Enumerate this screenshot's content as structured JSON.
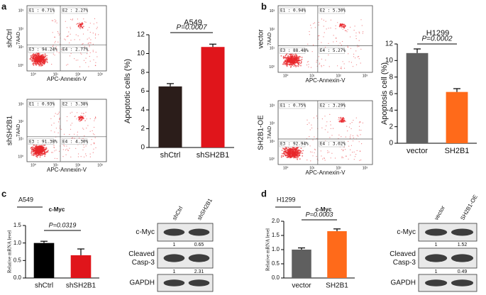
{
  "panel_labels": [
    "a",
    "b",
    "c",
    "d"
  ],
  "flow_ticks": [
    "10⁰",
    "10¹",
    "10²",
    "10³"
  ],
  "flow_plots": [
    {
      "label": "shCtrl",
      "ylabel": "7AAD",
      "xlabel": "APC-Annexin-V",
      "quadrants": [
        "E1 : 0.71%",
        "E2 : 2.27%",
        "E3 : 94.24%",
        "E4 : 2.77%"
      ]
    },
    {
      "label": "shSH2B1",
      "ylabel": "7AAD",
      "xlabel": "APC-Annexin-V",
      "quadrants": [
        "E1 : 0.93%",
        "E2 : 3.38%",
        "E3 : 91.38%",
        "E4 : 4.30%"
      ]
    },
    {
      "label": "vector",
      "ylabel": "7AAD",
      "xlabel": "APC-Annexin-V",
      "quadrants": [
        "E1 : 0.94%",
        "E2 : 5.30%",
        "E3 : 88.48%",
        "E4 : 5.27%"
      ]
    },
    {
      "label": "SH2B1-OE",
      "ylabel": "7AAD",
      "xlabel": "APC-Annexin-V",
      "quadrants": [
        "E1 : 0.75%",
        "E2 : 3.29%",
        "E3 : 92.94%",
        "E4 : 3.02%"
      ]
    }
  ],
  "chart_data": [
    {
      "type": "bar",
      "title": "A549",
      "ylabel": "Apoptotic cells (%)",
      "categories": [
        "shCtrl",
        "shSH2B1"
      ],
      "values": [
        6.5,
        10.7
      ],
      "errors": [
        0.3,
        0.3
      ],
      "colors": [
        "#2b1d1a",
        "#e0151b"
      ],
      "annotation": "P=0.0007",
      "ylim": [
        0,
        12
      ],
      "yticks": [
        0,
        2,
        4,
        6,
        8,
        10,
        12
      ]
    },
    {
      "type": "bar",
      "title": "H1299",
      "ylabel": "Apoptosis cell (%)",
      "categories": [
        "vector",
        "SH2B1"
      ],
      "values": [
        10.9,
        6.2
      ],
      "errors": [
        0.5,
        0.4
      ],
      "colors": [
        "#5f5f5f",
        "#ff6a1a"
      ],
      "annotation": "P=0.0002",
      "ylim": [
        0,
        12
      ],
      "yticks": [
        0,
        2,
        4,
        6,
        8,
        10,
        12
      ]
    },
    {
      "type": "bar",
      "cell_line": "A549",
      "title": "c-Myc",
      "ylabel": "Relative mRNA level",
      "categories": [
        "shCtrl",
        "shSH2B1"
      ],
      "values": [
        1.0,
        0.65
      ],
      "errors": [
        0.05,
        0.18
      ],
      "colors": [
        "#000000",
        "#e0151b"
      ],
      "annotation": "P=0.0319",
      "ylim": [
        0,
        1.5
      ],
      "yticks": [
        {
          "value": 0,
          "label": "0.0"
        },
        {
          "value": 0.5,
          "label": "0.5"
        },
        {
          "value": 1,
          "label": "1.0"
        },
        {
          "value": 1.5,
          "label": "1.5"
        }
      ]
    },
    {
      "type": "bar",
      "cell_line": "H1299",
      "title": "c-Myc",
      "ylabel": "Relative mRNA level",
      "categories": [
        "vector",
        "SH2B1"
      ],
      "values": [
        1.0,
        1.65
      ],
      "errors": [
        0.06,
        0.08
      ],
      "colors": [
        "#5f5f5f",
        "#ff6a1a"
      ],
      "annotation": "P=0.0003",
      "ylim": [
        0,
        2
      ],
      "yticks": [
        {
          "value": 0,
          "label": "0.0"
        },
        {
          "value": 0.5,
          "label": "0.5"
        },
        {
          "value": 1,
          "label": "1.0"
        },
        {
          "value": 1.5,
          "label": "1.5"
        },
        {
          "value": 2,
          "label": "2.0"
        }
      ]
    }
  ],
  "blots": [
    {
      "columns": [
        "shCtrl",
        "shSH2B1"
      ],
      "rows": [
        {
          "name": "c-Myc",
          "quant": [
            "1",
            "0.65"
          ]
        },
        {
          "name": "Cleaved Casp-3",
          "quant": [
            "1",
            "2.31"
          ]
        },
        {
          "name": "GAPDH"
        }
      ]
    },
    {
      "columns": [
        "vector",
        "SH2B1-OE"
      ],
      "rows": [
        {
          "name": "c-Myc",
          "quant": [
            "1",
            "1.52"
          ]
        },
        {
          "name": "Cleaved Casp-3",
          "quant": [
            "1",
            "0.49"
          ]
        },
        {
          "name": "GAPDH"
        }
      ]
    }
  ]
}
